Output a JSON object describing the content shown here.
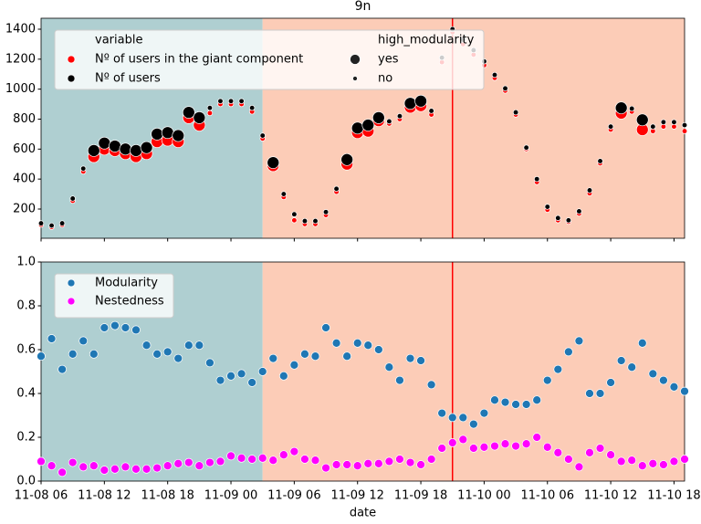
{
  "chart_data": [
    {
      "type": "scatter",
      "title": "9n",
      "x": [
        "11-08 06",
        "11-08 07",
        "11-08 08",
        "11-08 09",
        "11-08 10",
        "11-08 11",
        "11-08 12",
        "11-08 13",
        "11-08 14",
        "11-08 15",
        "11-08 16",
        "11-08 17",
        "11-08 18",
        "11-08 19",
        "11-08 20",
        "11-08 21",
        "11-08 22",
        "11-08 23",
        "11-09 00",
        "11-09 01",
        "11-09 02",
        "11-09 03",
        "11-09 04",
        "11-09 05",
        "11-09 06",
        "11-09 07",
        "11-09 08",
        "11-09 09",
        "11-09 10",
        "11-09 11",
        "11-09 12",
        "11-09 13",
        "11-09 14",
        "11-09 15",
        "11-09 16",
        "11-09 17",
        "11-09 18",
        "11-09 19",
        "11-09 20",
        "11-09 21",
        "11-09 22",
        "11-09 23",
        "11-10 00",
        "11-10 01",
        "11-10 02",
        "11-10 03",
        "11-10 04",
        "11-10 05",
        "11-10 06",
        "11-10 07",
        "11-10 08",
        "11-10 09",
        "11-10 10",
        "11-10 11",
        "11-10 12",
        "11-10 13",
        "11-10 14",
        "11-10 15",
        "11-10 16",
        "11-10 17",
        "11-10 18",
        "11-10 19"
      ],
      "xlim": [
        "11-08 06",
        "11-10 19"
      ],
      "xticks": [
        "11-08 06",
        "11-08 12",
        "11-08 18",
        "11-09 00",
        "11-09 06",
        "11-09 12",
        "11-09 18",
        "11-10 00",
        "11-10 06",
        "11-10 12",
        "11-10 18"
      ],
      "ylim": [
        5,
        1473
      ],
      "yticks": [
        200,
        400,
        600,
        800,
        1000,
        1200,
        1400
      ],
      "regions": [
        {
          "start": "11-08 06",
          "end": "11-09 03",
          "color": "#afcfd1"
        },
        {
          "start": "11-09 03",
          "end": "11-10 19",
          "color": "#fcccb7"
        }
      ],
      "vline": {
        "x": "11-09 21",
        "color": "#ff0000"
      },
      "legend_title": "variable",
      "series": [
        {
          "name": "Nº of users in the giant component",
          "color": "#ff0000",
          "values": [
            95,
            80,
            95,
            255,
            450,
            550,
            600,
            590,
            570,
            550,
            570,
            650,
            660,
            650,
            810,
            760,
            840,
            900,
            900,
            900,
            850,
            670,
            490,
            280,
            125,
            100,
            100,
            160,
            315,
            500,
            710,
            720,
            790,
            770,
            800,
            880,
            890,
            830,
            1180,
            1380,
            1300,
            1230,
            1160,
            1075,
            990,
            830,
            600,
            380,
            195,
            125,
            115,
            170,
            305,
            505,
            730,
            840,
            850,
            730,
            720,
            750,
            750,
            720
          ]
        },
        {
          "name": "Nº of users",
          "color": "#000000",
          "values": [
            105,
            90,
            105,
            270,
            470,
            590,
            640,
            620,
            600,
            590,
            610,
            700,
            710,
            690,
            845,
            810,
            875,
            920,
            920,
            920,
            875,
            690,
            510,
            300,
            165,
            120,
            120,
            180,
            335,
            530,
            740,
            760,
            810,
            785,
            820,
            905,
            920,
            855,
            1210,
            1400,
            1330,
            1260,
            1185,
            1095,
            1005,
            845,
            610,
            400,
            215,
            140,
            125,
            185,
            325,
            520,
            750,
            875,
            870,
            795,
            750,
            780,
            780,
            760
          ]
        }
      ],
      "size_legend": {
        "title": "high_modularity",
        "labels": [
          "yes",
          "no"
        ]
      },
      "high_modularity": [
        "no",
        "no",
        "no",
        "no",
        "no",
        "yes",
        "yes",
        "yes",
        "yes",
        "yes",
        "yes",
        "yes",
        "yes",
        "yes",
        "yes",
        "yes",
        "no",
        "no",
        "no",
        "no",
        "no",
        "no",
        "yes",
        "no",
        "no",
        "no",
        "no",
        "no",
        "no",
        "yes",
        "yes",
        "yes",
        "yes",
        "no",
        "no",
        "yes",
        "yes",
        "no",
        "no",
        "no",
        "no",
        "no",
        "no",
        "no",
        "no",
        "no",
        "no",
        "no",
        "no",
        "no",
        "no",
        "no",
        "no",
        "no",
        "no",
        "yes",
        "no",
        "yes",
        "no",
        "no",
        "no",
        "no"
      ]
    },
    {
      "type": "scatter",
      "x_label": "date",
      "x": [
        "11-08 06",
        "11-08 07",
        "11-08 08",
        "11-08 09",
        "11-08 10",
        "11-08 11",
        "11-08 12",
        "11-08 13",
        "11-08 14",
        "11-08 15",
        "11-08 16",
        "11-08 17",
        "11-08 18",
        "11-08 19",
        "11-08 20",
        "11-08 21",
        "11-08 22",
        "11-08 23",
        "11-09 00",
        "11-09 01",
        "11-09 02",
        "11-09 03",
        "11-09 04",
        "11-09 05",
        "11-09 06",
        "11-09 07",
        "11-09 08",
        "11-09 09",
        "11-09 10",
        "11-09 11",
        "11-09 12",
        "11-09 13",
        "11-09 14",
        "11-09 15",
        "11-09 16",
        "11-09 17",
        "11-09 18",
        "11-09 19",
        "11-09 20",
        "11-09 21",
        "11-09 22",
        "11-09 23",
        "11-10 00",
        "11-10 01",
        "11-10 02",
        "11-10 03",
        "11-10 04",
        "11-10 05",
        "11-10 06",
        "11-10 07",
        "11-10 08",
        "11-10 09",
        "11-10 10",
        "11-10 11",
        "11-10 12",
        "11-10 13",
        "11-10 14",
        "11-10 15",
        "11-10 16",
        "11-10 17",
        "11-10 18",
        "11-10 19"
      ],
      "xlim": [
        "11-08 06",
        "11-10 19"
      ],
      "xticks": [
        "11-08 06",
        "11-08 12",
        "11-08 18",
        "11-09 00",
        "11-09 06",
        "11-09 12",
        "11-09 18",
        "11-10 00",
        "11-10 06",
        "11-10 12",
        "11-10 18"
      ],
      "ylim": [
        0,
        1
      ],
      "yticks": [
        {
          "value": 0,
          "label": "0.0"
        },
        {
          "value": 0.2,
          "label": "0.2"
        },
        {
          "value": 0.4,
          "label": "0.4"
        },
        {
          "value": 0.6,
          "label": "0.6"
        },
        {
          "value": 0.8,
          "label": "0.8"
        },
        {
          "value": 1,
          "label": "1.0"
        }
      ],
      "regions": [
        {
          "start": "11-08 06",
          "end": "11-09 03",
          "color": "#afcfd1"
        },
        {
          "start": "11-09 03",
          "end": "11-10 19",
          "color": "#fcccb7"
        }
      ],
      "vline": {
        "x": "11-09 21",
        "color": "#ff0000"
      },
      "series": [
        {
          "name": "Modularity",
          "color": "#1f77b4",
          "values": [
            0.57,
            0.65,
            0.51,
            0.58,
            0.64,
            0.58,
            0.7,
            0.71,
            0.7,
            0.69,
            0.62,
            0.58,
            0.59,
            0.56,
            0.62,
            0.62,
            0.54,
            0.46,
            0.48,
            0.49,
            0.45,
            0.5,
            0.56,
            0.48,
            0.53,
            0.58,
            0.57,
            0.7,
            0.63,
            0.57,
            0.63,
            0.62,
            0.6,
            0.52,
            0.46,
            0.56,
            0.55,
            0.44,
            0.31,
            0.29,
            0.29,
            0.26,
            0.31,
            0.37,
            0.36,
            0.35,
            0.35,
            0.37,
            0.46,
            0.51,
            0.59,
            0.64,
            0.4,
            0.4,
            0.45,
            0.55,
            0.52,
            0.63,
            0.49,
            0.46,
            0.43,
            0.41
          ]
        },
        {
          "name": "Nestedness",
          "color": "#ff00ff",
          "values": [
            0.09,
            0.07,
            0.04,
            0.085,
            0.065,
            0.07,
            0.05,
            0.055,
            0.065,
            0.055,
            0.055,
            0.06,
            0.07,
            0.08,
            0.085,
            0.07,
            0.085,
            0.09,
            0.115,
            0.105,
            0.1,
            0.105,
            0.095,
            0.12,
            0.135,
            0.1,
            0.095,
            0.06,
            0.075,
            0.075,
            0.07,
            0.08,
            0.08,
            0.09,
            0.1,
            0.085,
            0.075,
            0.1,
            0.15,
            0.175,
            0.19,
            0.15,
            0.155,
            0.16,
            0.17,
            0.16,
            0.17,
            0.2,
            0.155,
            0.13,
            0.1,
            0.065,
            0.13,
            0.15,
            0.12,
            0.09,
            0.095,
            0.07,
            0.08,
            0.075,
            0.09,
            0.1
          ]
        }
      ]
    }
  ]
}
